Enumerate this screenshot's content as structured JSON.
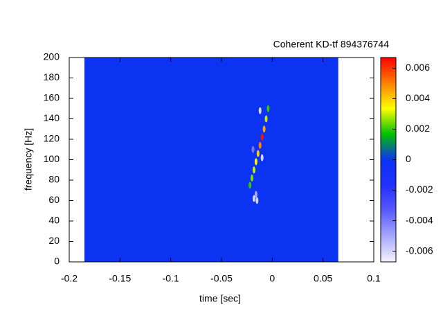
{
  "chart_data": {
    "type": "heatmap",
    "title": "Coherent KD-tf 894376744",
    "x_label": "time [sec]",
    "y_label": "frequency [Hz]",
    "xlim": [
      -0.2,
      0.1
    ],
    "xticks": [
      -0.2,
      -0.15,
      -0.1,
      -0.05,
      0,
      0.05,
      0.1
    ],
    "ylim": [
      0,
      200
    ],
    "yticks": [
      0,
      20,
      40,
      60,
      80,
      100,
      120,
      140,
      160,
      180,
      200
    ],
    "clim": [
      -0.0067,
      0.0067
    ],
    "cticks": [
      -0.006,
      -0.004,
      -0.002,
      0,
      0.002,
      0.004,
      0.006
    ],
    "colormap": [
      "#f4f4ff",
      "#a8a8ff",
      "#5a5aff",
      "#2030ff",
      "#0d33f2",
      "#00c000",
      "#ffff00",
      "#ff8000",
      "#ff0000"
    ],
    "data_xlim": [
      -0.185,
      0.065
    ],
    "background_value": 0,
    "points": {
      "x": [
        -0.022,
        -0.02,
        -0.018,
        -0.016,
        -0.014,
        -0.012,
        -0.01,
        -0.008,
        -0.006,
        -0.004,
        -0.018,
        -0.015,
        -0.012,
        -0.01,
        -0.019,
        -0.016
      ],
      "y": [
        75,
        82,
        90,
        98,
        106,
        114,
        122,
        130,
        140,
        150,
        62,
        60,
        148,
        102,
        110,
        66
      ],
      "values": [
        0.002,
        0.0025,
        0.003,
        0.0035,
        0.004,
        0.005,
        0.0065,
        0.0045,
        0.003,
        0.002,
        -0.006,
        -0.006,
        -0.006,
        -0.006,
        -0.004,
        -0.005
      ]
    }
  }
}
